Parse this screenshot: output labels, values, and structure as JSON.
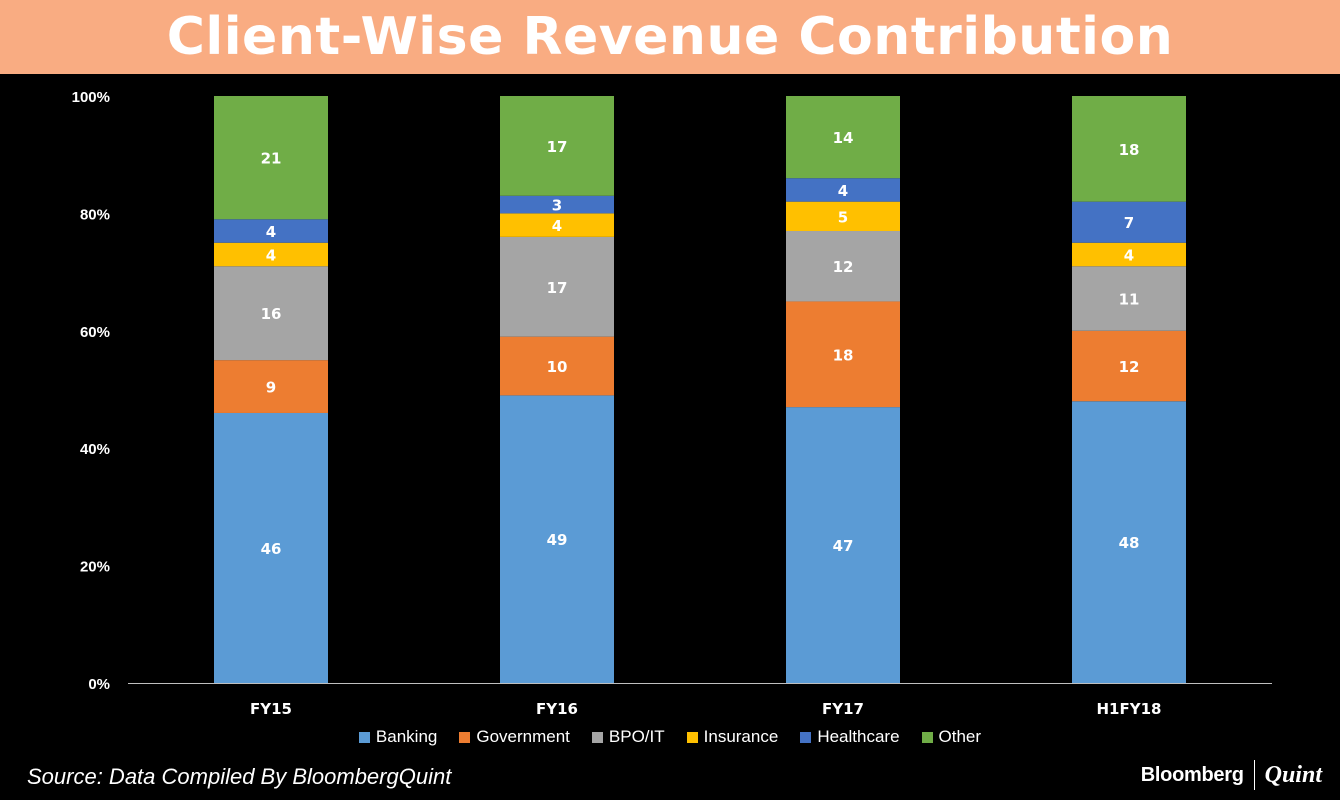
{
  "page": {
    "title": "Client-Wise Revenue Contribution",
    "source": "Source: Data Compiled By BloombergQuint",
    "brand_primary": "Bloomberg",
    "brand_secondary": "Quint"
  },
  "colors": {
    "title_bg": "#F9AC82",
    "background": "#000000"
  },
  "chart_data": {
    "type": "bar",
    "stacked": true,
    "title": "Client-Wise Revenue Contribution",
    "categories": [
      "FY15",
      "FY16",
      "FY17",
      "H1FY18"
    ],
    "ylim": [
      0,
      100
    ],
    "yticks": [
      0,
      20,
      40,
      60,
      80,
      100
    ],
    "ytick_labels": [
      "0%",
      "20%",
      "40%",
      "60%",
      "80%",
      "100%"
    ],
    "grid": false,
    "legend_position": "bottom",
    "series": [
      {
        "name": "Banking",
        "color": "#5B9BD5",
        "values": [
          46,
          49,
          47,
          48
        ]
      },
      {
        "name": "Government",
        "color": "#ED7D31",
        "values": [
          9,
          10,
          18,
          12
        ]
      },
      {
        "name": "BPO/IT",
        "color": "#A5A5A5",
        "values": [
          16,
          17,
          12,
          11
        ]
      },
      {
        "name": "Insurance",
        "color": "#FFC000",
        "values": [
          4,
          4,
          5,
          4
        ]
      },
      {
        "name": "Healthcare",
        "color": "#4472C4",
        "values": [
          4,
          3,
          4,
          7
        ]
      },
      {
        "name": "Other",
        "color": "#70AD47",
        "values": [
          21,
          17,
          14,
          18
        ]
      }
    ]
  }
}
